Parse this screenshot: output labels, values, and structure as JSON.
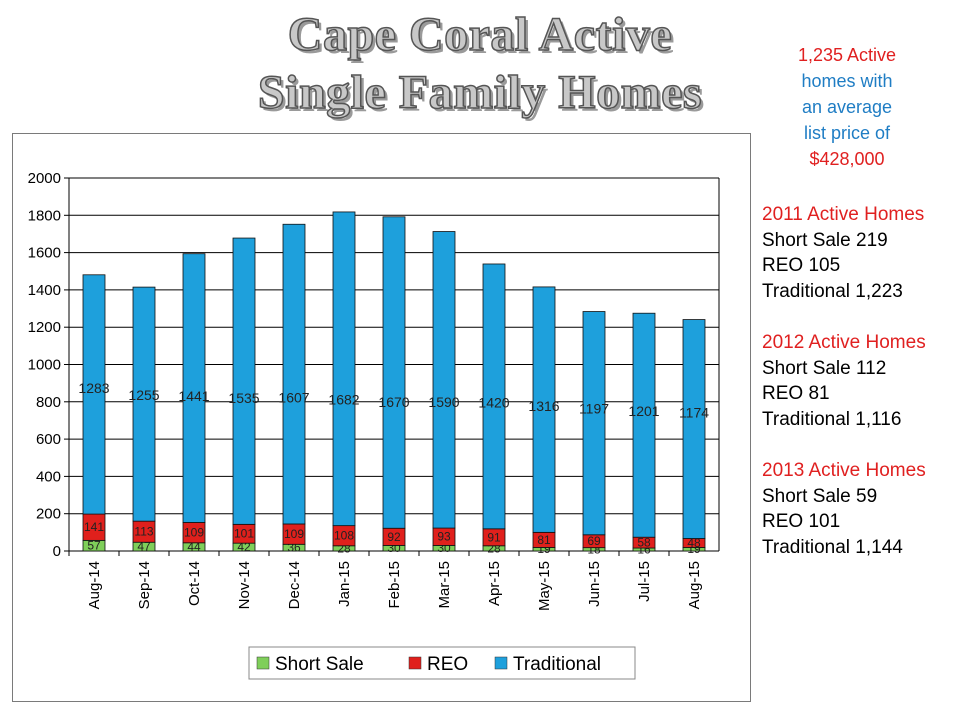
{
  "title": {
    "line1": "Cape Coral Active",
    "line2": "Single Family Homes"
  },
  "summary": {
    "line1": "1,235 Active",
    "line2": "homes with",
    "line3": "an average",
    "line4": "list price of",
    "line5": "$428,000"
  },
  "stats": [
    {
      "header": "2011 Active Homes",
      "short_sale": "Short Sale 219",
      "reo": "REO 105",
      "traditional": "Traditional 1,223"
    },
    {
      "header": "2012 Active Homes",
      "short_sale": "Short Sale 112",
      "reo": "REO 81",
      "traditional": "Traditional 1,116"
    },
    {
      "header": "2013 Active Homes",
      "short_sale": "Short Sale 59",
      "reo": "REO 101",
      "traditional": "Traditional 1,144"
    }
  ],
  "colors": {
    "short_sale": "#7fcf5a",
    "reo": "#e0201c",
    "traditional": "#1ea0dc",
    "summary_red": "#e02020",
    "summary_blue": "#1f7dc4"
  },
  "chart_data": {
    "type": "bar",
    "stacked": true,
    "categories": [
      "Aug-14",
      "Sep-14",
      "Oct-14",
      "Nov-14",
      "Dec-14",
      "Jan-15",
      "Feb-15",
      "Mar-15",
      "Apr-15",
      "May-15",
      "Jun-15",
      "Jul-15",
      "Aug-15"
    ],
    "series": [
      {
        "name": "Short Sale",
        "values": [
          57,
          47,
          44,
          42,
          36,
          28,
          30,
          30,
          28,
          19,
          18,
          16,
          19
        ]
      },
      {
        "name": "REO",
        "values": [
          141,
          113,
          109,
          101,
          109,
          108,
          92,
          93,
          91,
          81,
          69,
          58,
          48
        ]
      },
      {
        "name": "Traditional",
        "values": [
          1283,
          1255,
          1441,
          1535,
          1607,
          1682,
          1670,
          1590,
          1420,
          1316,
          1197,
          1201,
          1174
        ]
      }
    ],
    "ylim": [
      0,
      2000
    ],
    "yticks": [
      0,
      200,
      400,
      600,
      800,
      1000,
      1200,
      1400,
      1600,
      1800,
      2000
    ],
    "grid": true,
    "legend": "bottom"
  }
}
